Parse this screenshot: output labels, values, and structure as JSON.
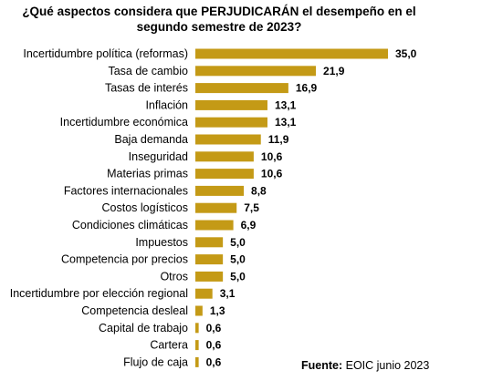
{
  "chart_data": {
    "type": "bar",
    "orientation": "horizontal",
    "title_line1": "¿Qué aspectos considera que PERJUDICARÁN el desempeño en el",
    "title_line2": "segundo semestre de 2023?",
    "categories": [
      "Incertidumbre política (reformas)",
      "Tasa de cambio",
      "Tasas de interés",
      "Inflación",
      "Incertidumbre económica",
      "Baja demanda",
      "Inseguridad",
      "Materias primas",
      "Factores internacionales",
      "Costos logísticos",
      "Condiciones climáticas",
      "Impuestos",
      "Competencia por precios",
      "Otros",
      "Incertidumbre por elección regional",
      "Competencia desleal",
      "Capital de trabajo",
      "Cartera",
      "Flujo de caja"
    ],
    "values": [
      35.0,
      21.9,
      16.9,
      13.1,
      13.1,
      11.9,
      10.6,
      10.6,
      8.8,
      7.5,
      6.9,
      5.0,
      5.0,
      5.0,
      3.1,
      1.3,
      0.6,
      0.6,
      0.6
    ],
    "value_labels": [
      "35,0",
      "21,9",
      "16,9",
      "13,1",
      "13,1",
      "11,9",
      "10,6",
      "10,6",
      "8,8",
      "7,5",
      "6,9",
      "5,0",
      "5,0",
      "5,0",
      "3,1",
      "1,3",
      "0,6",
      "0,6",
      "0,6"
    ],
    "bar_color": "#C49A16",
    "xlim": [
      0,
      35.0
    ],
    "grid": false,
    "legend": "none"
  },
  "source": {
    "label": "Fuente:",
    "text": " EOIC junio 2023"
  }
}
